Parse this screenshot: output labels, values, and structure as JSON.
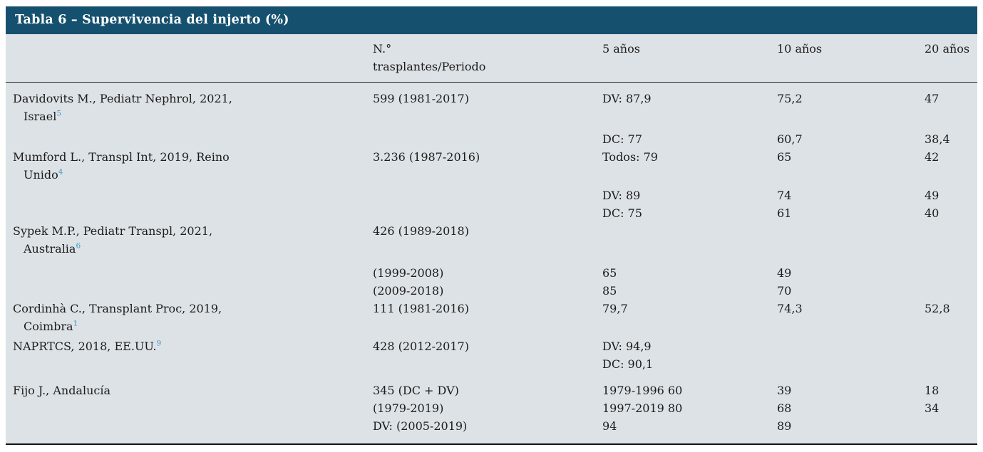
{
  "title": "Tabla 6 – Supervivencia del injerto (%)",
  "colors": {
    "header_bg": "#15506f",
    "body_bg": "#dde2e6",
    "ref_link": "#3d9ac6",
    "text": "#1c1c1c"
  },
  "columns": [
    "",
    "N.°\ntrasplantes/Periodo",
    "5 años",
    "10 años",
    "20 años"
  ],
  "rows": [
    {
      "gap": 0,
      "cells": [
        "Davidovits M., Pediatr Nephrol, 2021,",
        "599 (1981-2017)",
        "DV: 87,9",
        "75,2",
        "47"
      ]
    },
    {
      "gap": 0,
      "indent": true,
      "cells": [
        {
          "text": "Israel",
          "sup": "5"
        },
        "",
        "",
        "",
        ""
      ]
    },
    {
      "gap": 7,
      "cells": [
        "",
        "",
        "DC: 77",
        "60,7",
        "38,4"
      ]
    },
    {
      "gap": 0,
      "cells": [
        "Mumford L., Transpl Int, 2019, Reino",
        "3.236 (1987-2016)",
        "Todos: 79",
        "65",
        "42"
      ]
    },
    {
      "gap": 0,
      "indent": true,
      "cells": [
        {
          "text": "Unido",
          "sup": "4"
        },
        "",
        "",
        "",
        ""
      ]
    },
    {
      "gap": 4,
      "cells": [
        "",
        "",
        "DV: 89",
        "74",
        "49"
      ]
    },
    {
      "gap": 0,
      "cells": [
        "",
        "",
        "DC: 75",
        "61",
        "40"
      ]
    },
    {
      "gap": 0,
      "cells": [
        "Sypek M.P., Pediatr Transpl, 2021,",
        "426 (1989-2018)",
        "",
        "",
        ""
      ]
    },
    {
      "gap": 0,
      "indent": true,
      "cells": [
        {
          "text": "Australia",
          "sup": "6"
        },
        "",
        "",
        "",
        ""
      ]
    },
    {
      "gap": 9,
      "cells": [
        "",
        "(1999-2008)",
        "65",
        "49",
        ""
      ]
    },
    {
      "gap": 0,
      "cells": [
        "",
        "(2009-2018)",
        "85",
        "70",
        ""
      ]
    },
    {
      "gap": 0,
      "cells": [
        "Cordinhà C., Transplant Proc, 2019,",
        "111 (1981-2016)",
        "79,7",
        "74,3",
        "52,8"
      ]
    },
    {
      "gap": 0,
      "indent": true,
      "cells": [
        {
          "text": "Coimbra",
          "sup": "1"
        },
        "",
        "",
        "",
        ""
      ]
    },
    {
      "gap": 3,
      "cells": [
        {
          "text": "NAPRTCS, 2018, EE.UU.",
          "sup": "9"
        },
        "428 (2012-2017)",
        "DV: 94,9",
        "",
        ""
      ]
    },
    {
      "gap": 0,
      "cells": [
        "",
        "",
        "DC: 90,1",
        "",
        ""
      ]
    },
    {
      "gap": 12,
      "cells": [
        "Fijo J., Andalucía",
        "345 (DC + DV)",
        "1979-1996 60",
        "39",
        "18"
      ]
    },
    {
      "gap": 0,
      "cells": [
        "",
        "(1979-2019)",
        "1997-2019 80",
        "68",
        "34"
      ]
    },
    {
      "gap": 0,
      "cells": [
        "",
        "DV: (2005-2019)",
        "94",
        "89",
        ""
      ]
    }
  ]
}
